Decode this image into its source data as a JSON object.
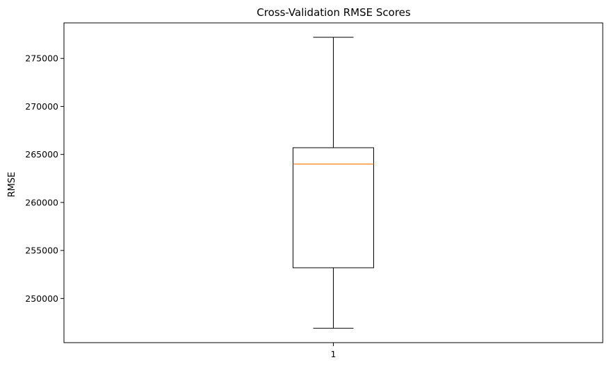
{
  "chart_data": {
    "type": "box",
    "title": "Cross-Validation RMSE Scores",
    "xlabel": "",
    "ylabel": "RMSE",
    "categories": [
      "1"
    ],
    "boxes": [
      {
        "label": "1",
        "whisker_low": 246900,
        "q1": 253200,
        "median": 264000,
        "q3": 265700,
        "whisker_high": 277200
      }
    ],
    "ylim": [
      245400,
      278700
    ],
    "yticks": [
      250000,
      255000,
      260000,
      265000,
      270000,
      275000
    ],
    "ytick_labels": [
      "250000",
      "255000",
      "260000",
      "265000",
      "270000",
      "275000"
    ],
    "grid": false,
    "colors": {
      "box": "#000000",
      "median": "#ff7f0e",
      "whisker": "#000000"
    }
  }
}
